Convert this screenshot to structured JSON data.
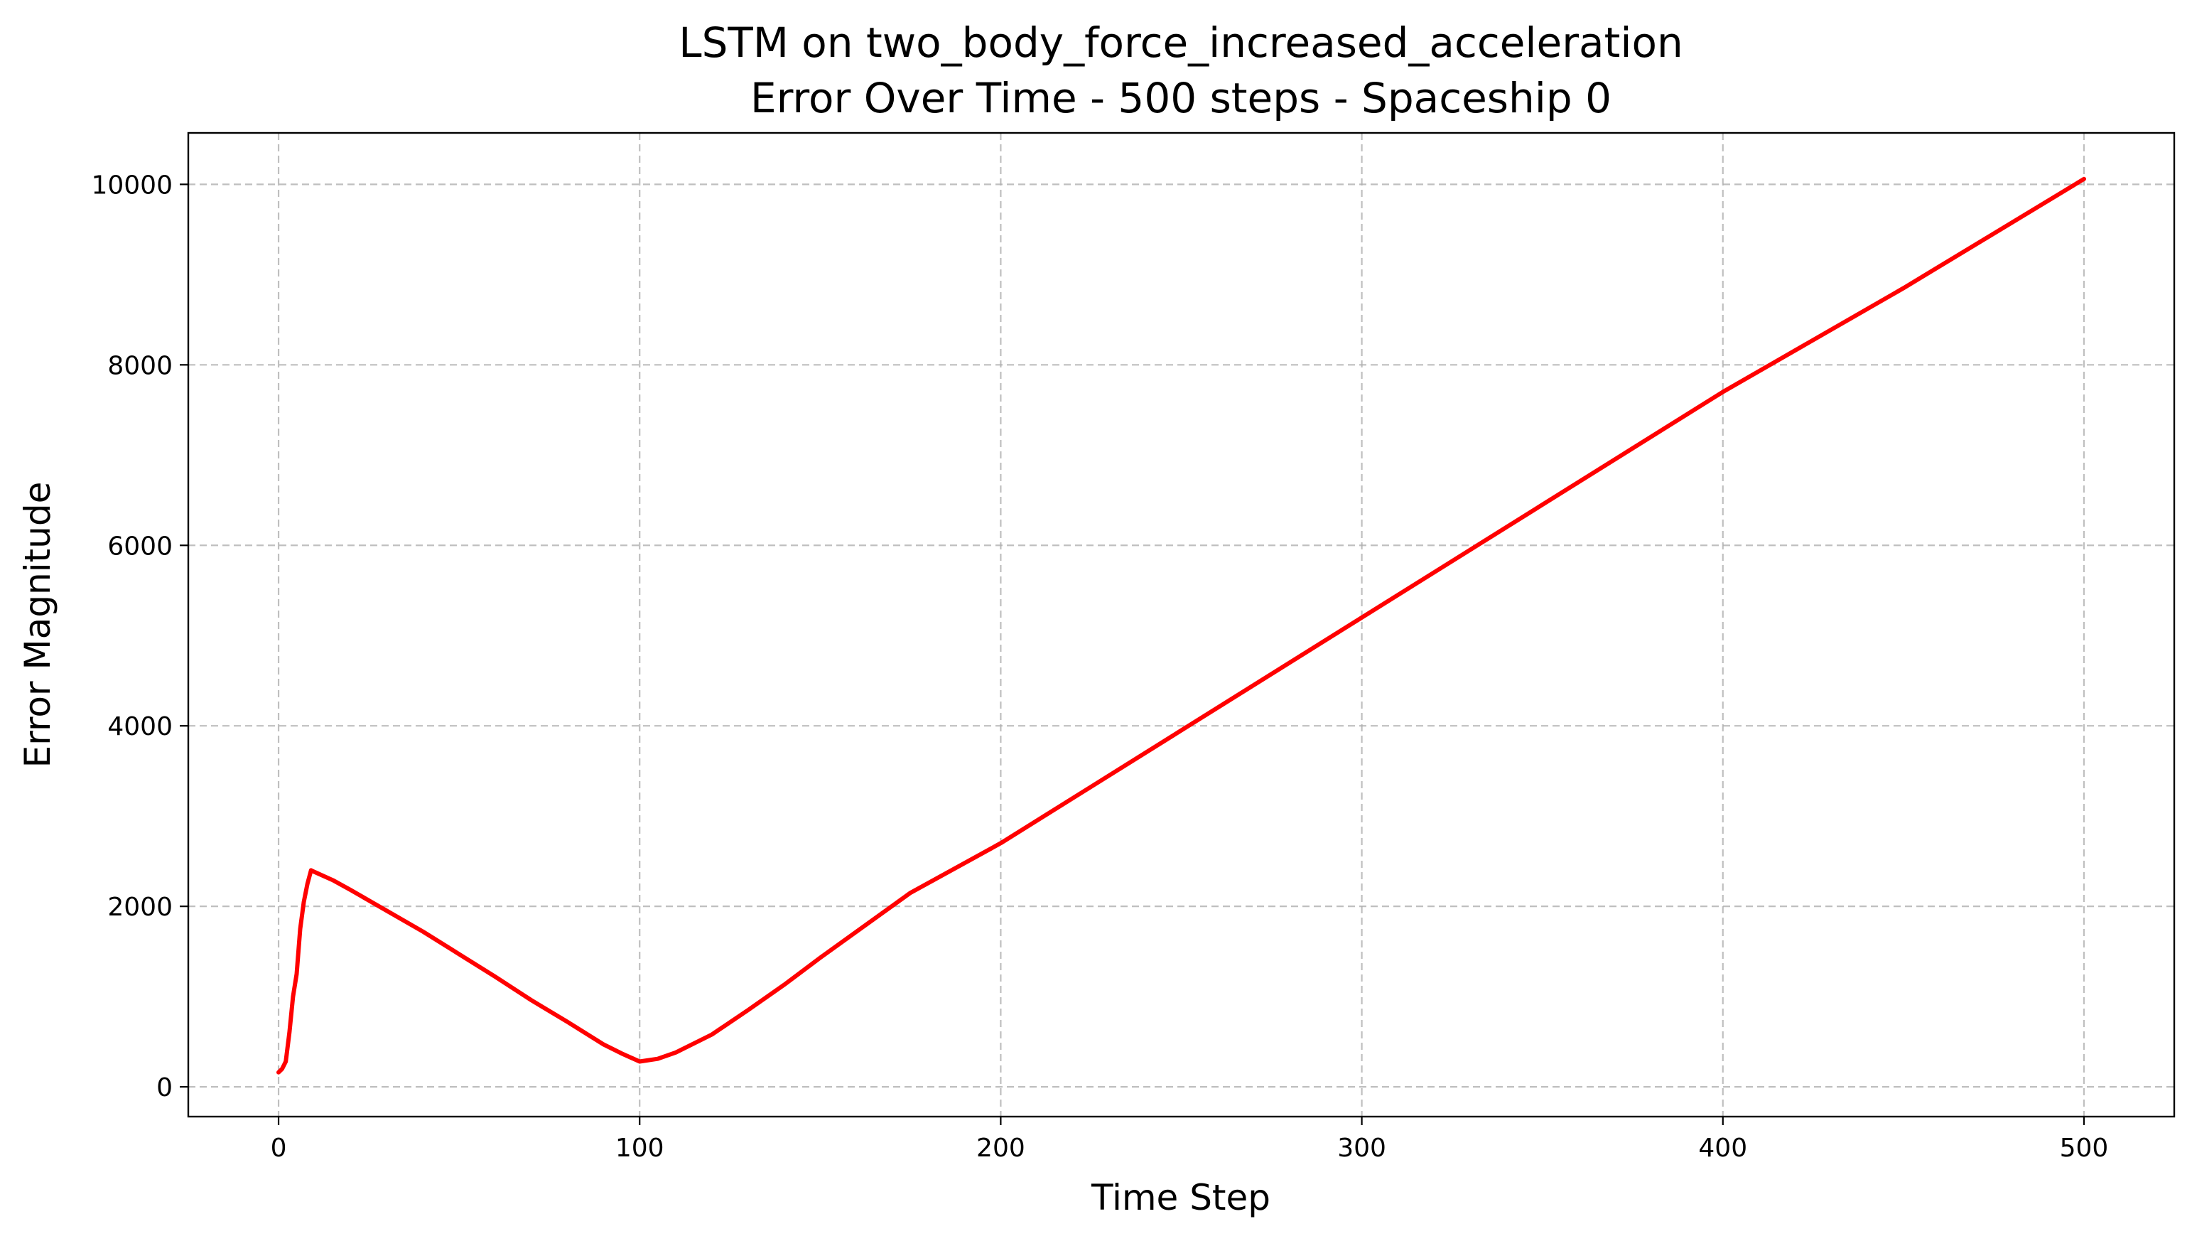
{
  "chart_data": {
    "type": "line",
    "title": "LSTM on two_body_force_increased_acceleration",
    "subtitle": "Error Over Time - 500 steps - Spaceship 0",
    "xlabel": "Time Step",
    "ylabel": "Error Magnitude",
    "xlim": [
      -25,
      525
    ],
    "ylim": [
      -330,
      10570
    ],
    "xticks": [
      0,
      100,
      200,
      300,
      400,
      500
    ],
    "yticks": [
      0,
      2000,
      4000,
      6000,
      8000,
      10000
    ],
    "xtick_labels": [
      "0",
      "100",
      "200",
      "300",
      "400",
      "500"
    ],
    "ytick_labels": [
      "0",
      "2000",
      "4000",
      "6000",
      "8000",
      "10000"
    ],
    "grid": true,
    "legend": "none",
    "series": [
      {
        "color": "#ff0000",
        "x": [
          0,
          1,
          2,
          3,
          4,
          5,
          6,
          7,
          8,
          9,
          10,
          15,
          20,
          30,
          40,
          50,
          60,
          70,
          80,
          90,
          95,
          100,
          105,
          110,
          120,
          130,
          140,
          150,
          175,
          200,
          250,
          300,
          350,
          400,
          450,
          500
        ],
        "y": [
          160,
          200,
          280,
          600,
          1000,
          1250,
          1750,
          2050,
          2250,
          2400,
          2380,
          2290,
          2180,
          1950,
          1720,
          1470,
          1220,
          960,
          720,
          470,
          370,
          280,
          310,
          380,
          580,
          850,
          1130,
          1430,
          2150,
          2700,
          3950,
          5200,
          6450,
          7700,
          8850,
          10060
        ]
      }
    ]
  }
}
